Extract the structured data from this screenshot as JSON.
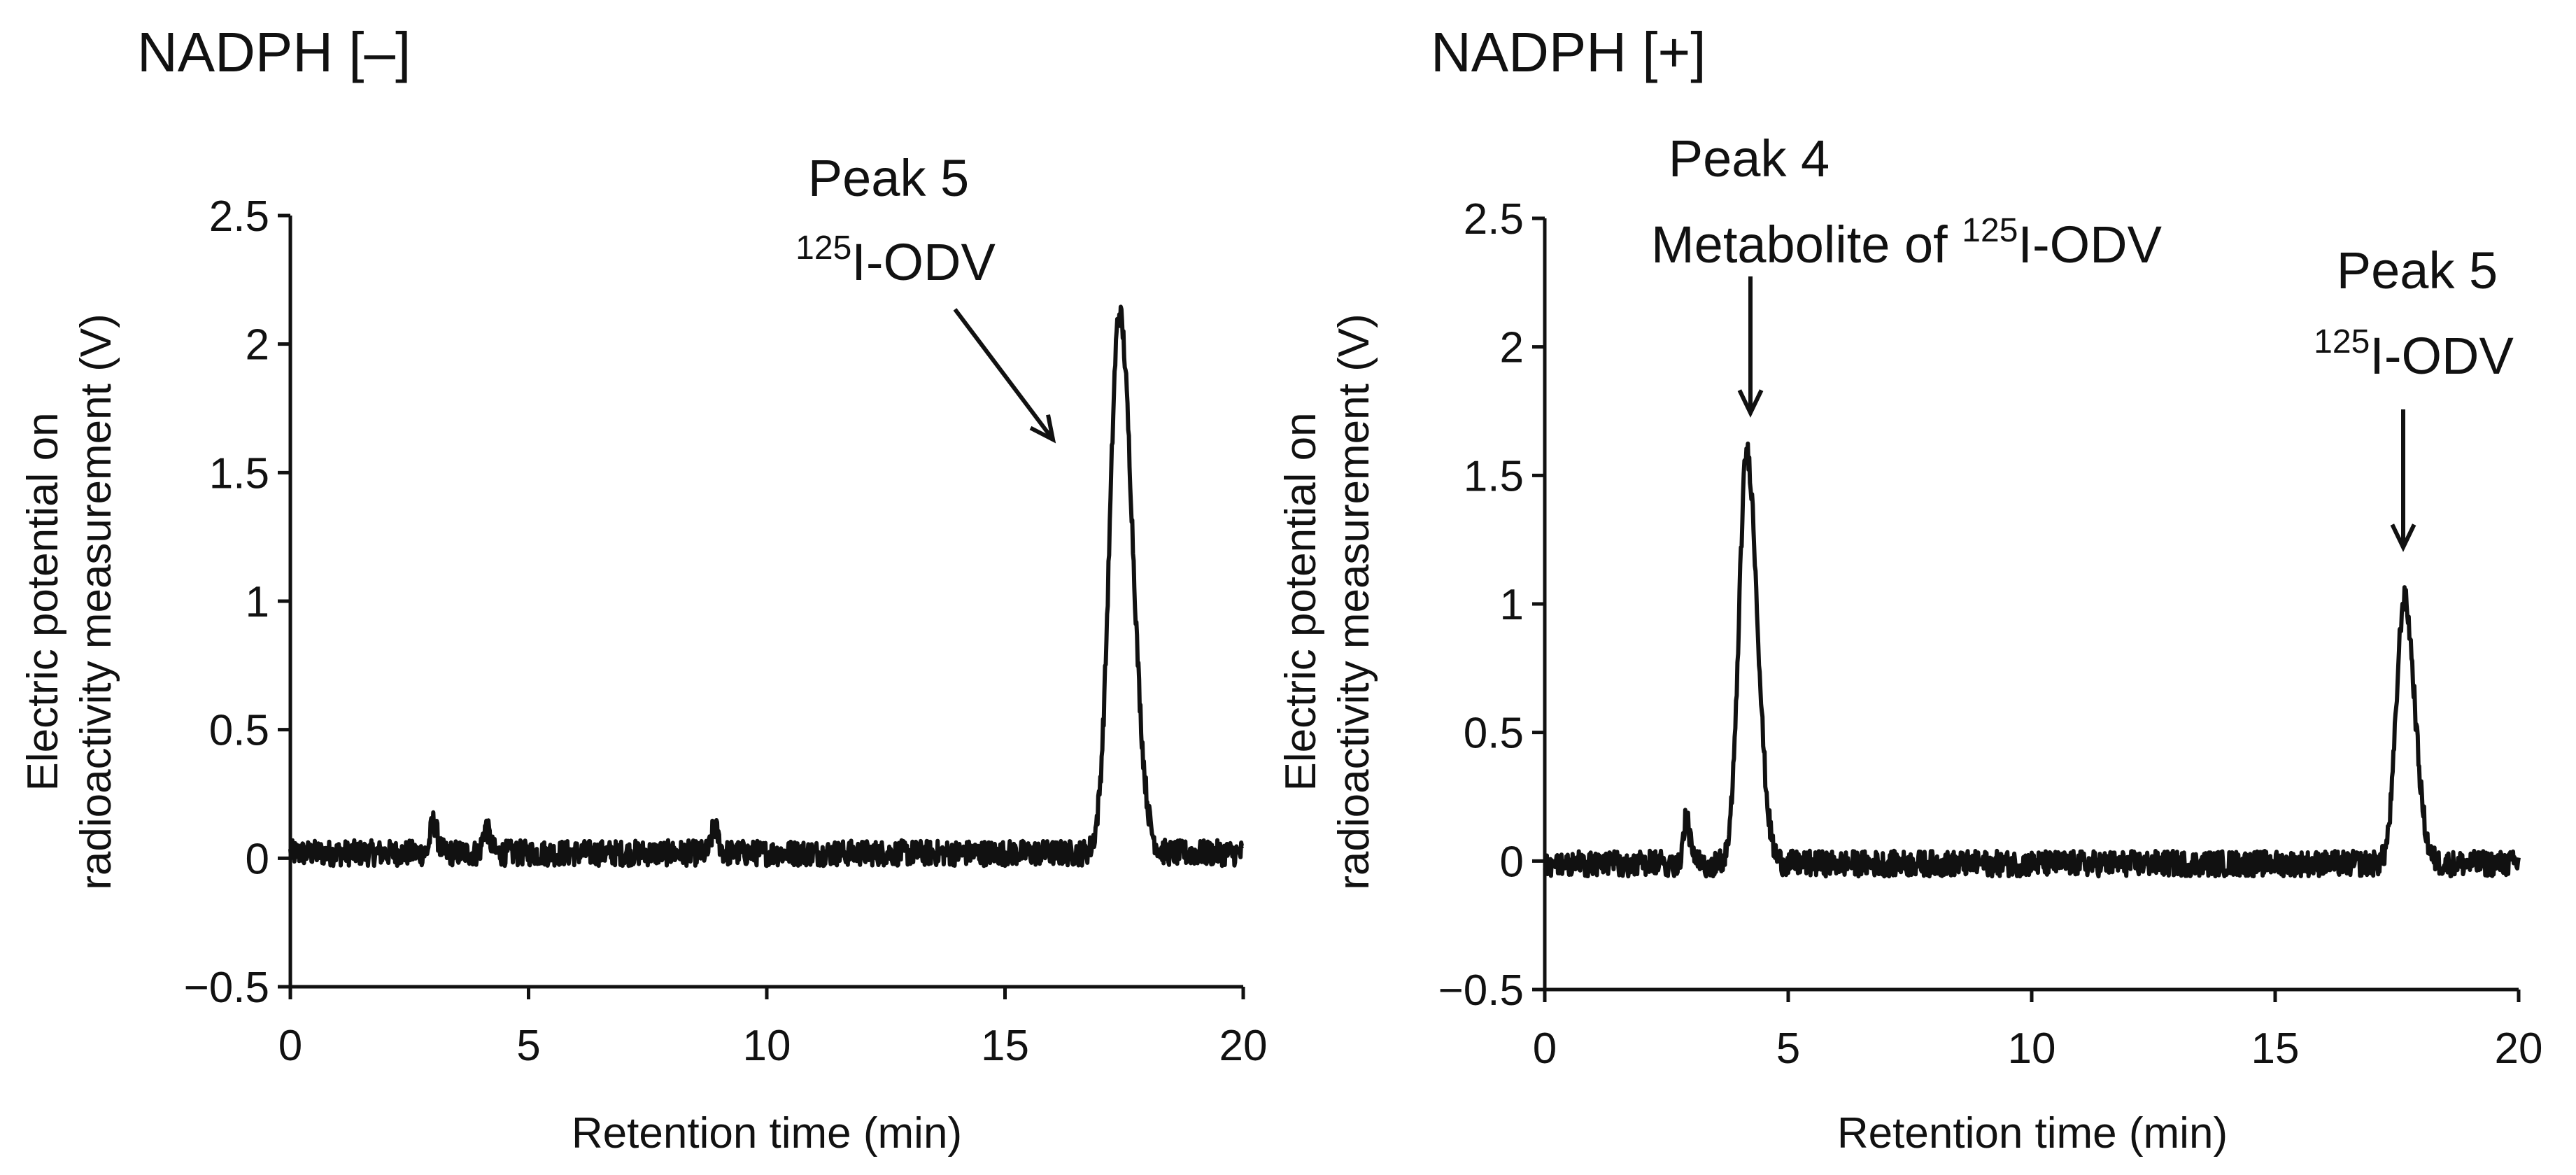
{
  "chart_data": [
    {
      "type": "line",
      "panel": "left",
      "title": "NADPH [–]",
      "xlabel": "Retention time (min)",
      "ylabel": "Electric potential on radioactivity measurement (V)",
      "ylabel_lines": [
        "Electric potential on",
        "radioactivity measurement (V)"
      ],
      "xlim": [
        0,
        20
      ],
      "ylim": [
        -0.5,
        2.5
      ],
      "xticks": [
        0,
        5,
        10,
        15,
        20
      ],
      "yticks": [
        -0.5,
        0,
        0.5,
        1,
        1.5,
        2,
        2.5
      ],
      "ytick_labels": [
        "−0.5",
        "0",
        "0.5",
        "1",
        "1.5",
        "2",
        "2.5"
      ],
      "baseline": 0.02,
      "noise_amplitude": 0.05,
      "peaks": [
        {
          "x": 3.0,
          "height": 0.12,
          "width": 0.06
        },
        {
          "x": 4.1,
          "height": 0.1,
          "width": 0.06
        },
        {
          "x": 8.9,
          "height": 0.1,
          "width": 0.06
        },
        {
          "x": 17.4,
          "height": 2.1,
          "width": 0.2
        }
      ],
      "annotations": [
        {
          "line1": "Peak 5",
          "iso": "125",
          "compound": "I-ODV",
          "x": 16.1,
          "y": 1.6
        }
      ]
    },
    {
      "type": "line",
      "panel": "right",
      "title": "NADPH [+]",
      "xlabel": "Retention time (min)",
      "ylabel": "Electric potential on radioactivity measurement (V)",
      "ylabel_lines": [
        "Electric potential on",
        "radioactivity measurement (V)"
      ],
      "xlim": [
        0,
        20
      ],
      "ylim": [
        -0.5,
        2.5
      ],
      "xticks": [
        0,
        5,
        10,
        15,
        20
      ],
      "yticks": [
        -0.5,
        0,
        0.5,
        1,
        1.5,
        2,
        2.5
      ],
      "ytick_labels": [
        "−0.5",
        "0",
        "0.5",
        "1",
        "1.5",
        "2",
        "2.5"
      ],
      "baseline": -0.01,
      "noise_amplitude": 0.05,
      "peaks": [
        {
          "x": 2.9,
          "height": 0.17,
          "width": 0.06
        },
        {
          "x": 4.15,
          "height": 1.6,
          "width": 0.16
        },
        {
          "x": 17.65,
          "height": 1.03,
          "width": 0.16
        }
      ],
      "annotations": [
        {
          "line1": "Peak 4",
          "prefix": "Metabolite of ",
          "iso": "125",
          "compound": "I-ODV",
          "x": 4.2,
          "y": 1.72
        },
        {
          "line1": "Peak 5",
          "iso": "125",
          "compound": "I-ODV",
          "x": 17.65,
          "y": 1.2
        }
      ]
    }
  ]
}
